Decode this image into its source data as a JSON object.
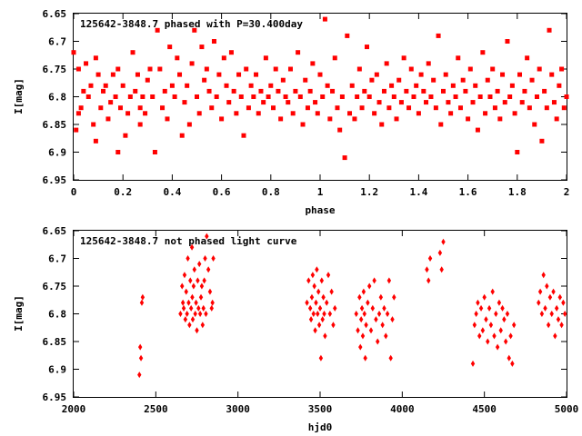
{
  "chart_data": [
    {
      "type": "scatter",
      "title": "125642-3848.7 phased with P=30.400day",
      "xlabel": "phase",
      "ylabel": "I[mag]",
      "xlim": [
        0,
        2
      ],
      "ylim": [
        6.95,
        6.65
      ],
      "y_inverted": true,
      "xticks": [
        "0",
        "0.2",
        "0.4",
        "0.6",
        "0.8",
        "1",
        "1.2",
        "1.4",
        "1.6",
        "1.8",
        "2"
      ],
      "yticks": [
        "6.65",
        "6.7",
        "6.75",
        "6.8",
        "6.85",
        "6.9",
        "6.95"
      ],
      "marker": "filled-square",
      "color": "#ff0000",
      "points": [
        [
          0.0,
          6.72
        ],
        [
          0.01,
          6.86
        ],
        [
          0.02,
          6.75
        ],
        [
          0.02,
          6.83
        ],
        [
          0.03,
          6.82
        ],
        [
          0.04,
          6.79
        ],
        [
          0.05,
          6.74
        ],
        [
          0.06,
          6.8
        ],
        [
          0.07,
          6.78
        ],
        [
          0.08,
          6.85
        ],
        [
          0.09,
          6.88
        ],
        [
          0.09,
          6.73
        ],
        [
          0.1,
          6.76
        ],
        [
          0.11,
          6.82
        ],
        [
          0.12,
          6.79
        ],
        [
          0.13,
          6.78
        ],
        [
          0.14,
          6.84
        ],
        [
          0.15,
          6.81
        ],
        [
          0.16,
          6.76
        ],
        [
          0.17,
          6.8
        ],
        [
          0.18,
          6.75
        ],
        [
          0.18,
          6.9
        ],
        [
          0.19,
          6.82
        ],
        [
          0.2,
          6.78
        ],
        [
          0.21,
          6.87
        ],
        [
          0.22,
          6.83
        ],
        [
          0.23,
          6.8
        ],
        [
          0.24,
          6.72
        ],
        [
          0.25,
          6.79
        ],
        [
          0.26,
          6.76
        ],
        [
          0.27,
          6.82
        ],
        [
          0.27,
          6.85
        ],
        [
          0.28,
          6.8
        ],
        [
          0.29,
          6.83
        ],
        [
          0.3,
          6.77
        ],
        [
          0.31,
          6.75
        ],
        [
          0.32,
          6.8
        ],
        [
          0.33,
          6.9
        ],
        [
          0.34,
          6.68
        ],
        [
          0.35,
          6.75
        ],
        [
          0.36,
          6.82
        ],
        [
          0.37,
          6.79
        ],
        [
          0.38,
          6.84
        ],
        [
          0.39,
          6.71
        ],
        [
          0.4,
          6.78
        ],
        [
          0.41,
          6.8
        ],
        [
          0.42,
          6.73
        ],
        [
          0.43,
          6.76
        ],
        [
          0.44,
          6.87
        ],
        [
          0.45,
          6.81
        ],
        [
          0.46,
          6.78
        ],
        [
          0.47,
          6.85
        ],
        [
          0.48,
          6.74
        ],
        [
          0.49,
          6.68
        ],
        [
          0.5,
          6.8
        ],
        [
          0.51,
          6.83
        ],
        [
          0.52,
          6.71
        ],
        [
          0.53,
          6.77
        ],
        [
          0.54,
          6.75
        ],
        [
          0.55,
          6.79
        ],
        [
          0.56,
          6.82
        ],
        [
          0.57,
          6.7
        ],
        [
          0.58,
          6.8
        ],
        [
          0.59,
          6.76
        ],
        [
          0.6,
          6.84
        ],
        [
          0.61,
          6.73
        ],
        [
          0.62,
          6.78
        ],
        [
          0.63,
          6.81
        ],
        [
          0.64,
          6.72
        ],
        [
          0.65,
          6.79
        ],
        [
          0.66,
          6.83
        ],
        [
          0.67,
          6.76
        ],
        [
          0.68,
          6.8
        ],
        [
          0.69,
          6.87
        ],
        [
          0.7,
          6.75
        ],
        [
          0.71,
          6.82
        ],
        [
          0.72,
          6.78
        ],
        [
          0.73,
          6.8
        ],
        [
          0.74,
          6.76
        ],
        [
          0.75,
          6.83
        ],
        [
          0.76,
          6.79
        ],
        [
          0.77,
          6.81
        ],
        [
          0.78,
          6.73
        ],
        [
          0.79,
          6.8
        ],
        [
          0.8,
          6.78
        ],
        [
          0.81,
          6.82
        ],
        [
          0.82,
          6.75
        ],
        [
          0.83,
          6.79
        ],
        [
          0.84,
          6.84
        ],
        [
          0.85,
          6.77
        ],
        [
          0.86,
          6.8
        ],
        [
          0.87,
          6.81
        ],
        [
          0.88,
          6.75
        ],
        [
          0.89,
          6.83
        ],
        [
          0.9,
          6.79
        ],
        [
          0.91,
          6.72
        ],
        [
          0.92,
          6.8
        ],
        [
          0.93,
          6.85
        ],
        [
          0.94,
          6.77
        ],
        [
          0.95,
          6.82
        ],
        [
          0.96,
          6.79
        ],
        [
          0.97,
          6.74
        ],
        [
          0.98,
          6.81
        ],
        [
          0.99,
          6.83
        ],
        [
          1.0,
          6.76
        ],
        [
          1.01,
          6.8
        ],
        [
          1.02,
          6.66
        ],
        [
          1.03,
          6.78
        ],
        [
          1.04,
          6.84
        ],
        [
          1.05,
          6.79
        ],
        [
          1.06,
          6.73
        ],
        [
          1.07,
          6.82
        ],
        [
          1.08,
          6.86
        ],
        [
          1.09,
          6.8
        ],
        [
          1.1,
          6.91
        ],
        [
          1.11,
          6.69
        ],
        [
          1.12,
          6.83
        ],
        [
          1.13,
          6.78
        ],
        [
          1.14,
          6.84
        ],
        [
          1.15,
          6.8
        ],
        [
          1.16,
          6.75
        ],
        [
          1.17,
          6.82
        ],
        [
          1.18,
          6.79
        ],
        [
          1.19,
          6.71
        ],
        [
          1.2,
          6.8
        ],
        [
          1.21,
          6.77
        ],
        [
          1.22,
          6.83
        ],
        [
          1.23,
          6.76
        ],
        [
          1.24,
          6.81
        ],
        [
          1.25,
          6.85
        ],
        [
          1.26,
          6.79
        ],
        [
          1.27,
          6.74
        ],
        [
          1.28,
          6.82
        ],
        [
          1.29,
          6.78
        ],
        [
          1.3,
          6.8
        ],
        [
          1.31,
          6.84
        ],
        [
          1.32,
          6.77
        ],
        [
          1.33,
          6.81
        ],
        [
          1.34,
          6.73
        ],
        [
          1.35,
          6.79
        ],
        [
          1.36,
          6.82
        ],
        [
          1.37,
          6.75
        ],
        [
          1.38,
          6.8
        ],
        [
          1.39,
          6.78
        ],
        [
          1.4,
          6.83
        ],
        [
          1.41,
          6.76
        ],
        [
          1.42,
          6.79
        ],
        [
          1.43,
          6.81
        ],
        [
          1.44,
          6.74
        ],
        [
          1.45,
          6.8
        ],
        [
          1.46,
          6.77
        ],
        [
          1.47,
          6.82
        ],
        [
          1.48,
          6.69
        ],
        [
          1.49,
          6.85
        ],
        [
          1.5,
          6.79
        ],
        [
          1.51,
          6.76
        ],
        [
          1.52,
          6.81
        ],
        [
          1.53,
          6.83
        ],
        [
          1.54,
          6.78
        ],
        [
          1.55,
          6.8
        ],
        [
          1.56,
          6.73
        ],
        [
          1.57,
          6.82
        ],
        [
          1.58,
          6.77
        ],
        [
          1.59,
          6.79
        ],
        [
          1.6,
          6.84
        ],
        [
          1.61,
          6.75
        ],
        [
          1.62,
          6.81
        ],
        [
          1.63,
          6.78
        ],
        [
          1.64,
          6.86
        ],
        [
          1.65,
          6.8
        ],
        [
          1.66,
          6.72
        ],
        [
          1.67,
          6.83
        ],
        [
          1.68,
          6.77
        ],
        [
          1.69,
          6.8
        ],
        [
          1.7,
          6.75
        ],
        [
          1.71,
          6.82
        ],
        [
          1.72,
          6.79
        ],
        [
          1.73,
          6.84
        ],
        [
          1.74,
          6.76
        ],
        [
          1.75,
          6.81
        ],
        [
          1.76,
          6.7
        ],
        [
          1.77,
          6.8
        ],
        [
          1.78,
          6.78
        ],
        [
          1.79,
          6.83
        ],
        [
          1.8,
          6.9
        ],
        [
          1.81,
          6.76
        ],
        [
          1.82,
          6.81
        ],
        [
          1.83,
          6.79
        ],
        [
          1.84,
          6.73
        ],
        [
          1.85,
          6.82
        ],
        [
          1.86,
          6.77
        ],
        [
          1.87,
          6.85
        ],
        [
          1.88,
          6.8
        ],
        [
          1.89,
          6.75
        ],
        [
          1.9,
          6.88
        ],
        [
          1.91,
          6.79
        ],
        [
          1.92,
          6.82
        ],
        [
          1.93,
          6.68
        ],
        [
          1.94,
          6.76
        ],
        [
          1.95,
          6.81
        ],
        [
          1.96,
          6.84
        ],
        [
          1.97,
          6.78
        ],
        [
          1.98,
          6.75
        ],
        [
          1.99,
          6.82
        ],
        [
          2.0,
          6.8
        ]
      ]
    },
    {
      "type": "scatter",
      "title": "125642-3848.7 not phased light curve",
      "xlabel": "hjd0",
      "ylabel": "I[mag]",
      "xlim": [
        2000,
        5000
      ],
      "ylim": [
        6.95,
        6.65
      ],
      "y_inverted": true,
      "xticks": [
        "2000",
        "2500",
        "3000",
        "3500",
        "4000",
        "4500",
        "5000"
      ],
      "yticks": [
        "6.65",
        "6.7",
        "6.75",
        "6.8",
        "6.85",
        "6.9",
        "6.95"
      ],
      "marker": "filled-diamond",
      "color": "#ff0000",
      "points": [
        [
          2400,
          6.91
        ],
        [
          2405,
          6.86
        ],
        [
          2410,
          6.88
        ],
        [
          2415,
          6.78
        ],
        [
          2420,
          6.77
        ],
        [
          2650,
          6.8
        ],
        [
          2660,
          6.75
        ],
        [
          2665,
          6.78
        ],
        [
          2670,
          6.79
        ],
        [
          2675,
          6.73
        ],
        [
          2680,
          6.81
        ],
        [
          2685,
          6.76
        ],
        [
          2690,
          6.8
        ],
        [
          2695,
          6.7
        ],
        [
          2700,
          6.78
        ],
        [
          2705,
          6.82
        ],
        [
          2710,
          6.74
        ],
        [
          2715,
          6.79
        ],
        [
          2720,
          6.68
        ],
        [
          2722,
          6.77
        ],
        [
          2725,
          6.81
        ],
        [
          2730,
          6.75
        ],
        [
          2735,
          6.72
        ],
        [
          2740,
          6.8
        ],
        [
          2745,
          6.78
        ],
        [
          2750,
          6.83
        ],
        [
          2755,
          6.74
        ],
        [
          2760,
          6.79
        ],
        [
          2765,
          6.71
        ],
        [
          2770,
          6.8
        ],
        [
          2775,
          6.77
        ],
        [
          2780,
          6.75
        ],
        [
          2785,
          6.82
        ],
        [
          2790,
          6.79
        ],
        [
          2795,
          6.74
        ],
        [
          2800,
          6.7
        ],
        [
          2805,
          6.8
        ],
        [
          2810,
          6.66
        ],
        [
          2820,
          6.72
        ],
        [
          2830,
          6.76
        ],
        [
          2840,
          6.79
        ],
        [
          2845,
          6.78
        ],
        [
          2850,
          6.7
        ],
        [
          3420,
          6.78
        ],
        [
          3430,
          6.74
        ],
        [
          3440,
          6.79
        ],
        [
          3445,
          6.81
        ],
        [
          3450,
          6.77
        ],
        [
          3455,
          6.73
        ],
        [
          3460,
          6.8
        ],
        [
          3465,
          6.75
        ],
        [
          3470,
          6.83
        ],
        [
          3475,
          6.78
        ],
        [
          3480,
          6.72
        ],
        [
          3485,
          6.8
        ],
        [
          3490,
          6.76
        ],
        [
          3495,
          6.82
        ],
        [
          3500,
          6.79
        ],
        [
          3505,
          6.88
        ],
        [
          3510,
          6.74
        ],
        [
          3515,
          6.81
        ],
        [
          3520,
          6.77
        ],
        [
          3525,
          6.8
        ],
        [
          3530,
          6.84
        ],
        [
          3540,
          6.78
        ],
        [
          3550,
          6.73
        ],
        [
          3560,
          6.8
        ],
        [
          3570,
          6.76
        ],
        [
          3580,
          6.82
        ],
        [
          3590,
          6.79
        ],
        [
          3720,
          6.8
        ],
        [
          3730,
          6.83
        ],
        [
          3740,
          6.77
        ],
        [
          3745,
          6.86
        ],
        [
          3750,
          6.81
        ],
        [
          3755,
          6.79
        ],
        [
          3760,
          6.84
        ],
        [
          3765,
          6.76
        ],
        [
          3770,
          6.8
        ],
        [
          3775,
          6.88
        ],
        [
          3780,
          6.82
        ],
        [
          3790,
          6.78
        ],
        [
          3800,
          6.75
        ],
        [
          3810,
          6.83
        ],
        [
          3820,
          6.79
        ],
        [
          3830,
          6.74
        ],
        [
          3840,
          6.81
        ],
        [
          3850,
          6.85
        ],
        [
          3860,
          6.8
        ],
        [
          3870,
          6.77
        ],
        [
          3880,
          6.82
        ],
        [
          3890,
          6.79
        ],
        [
          3900,
          6.84
        ],
        [
          3910,
          6.8
        ],
        [
          3920,
          6.74
        ],
        [
          3930,
          6.88
        ],
        [
          3940,
          6.81
        ],
        [
          3950,
          6.77
        ],
        [
          4150,
          6.72
        ],
        [
          4160,
          6.74
        ],
        [
          4170,
          6.7
        ],
        [
          4230,
          6.69
        ],
        [
          4240,
          6.72
        ],
        [
          4250,
          6.67
        ],
        [
          4430,
          6.89
        ],
        [
          4440,
          6.82
        ],
        [
          4450,
          6.8
        ],
        [
          4460,
          6.78
        ],
        [
          4470,
          6.84
        ],
        [
          4480,
          6.79
        ],
        [
          4490,
          6.83
        ],
        [
          4500,
          6.77
        ],
        [
          4510,
          6.81
        ],
        [
          4520,
          6.85
        ],
        [
          4530,
          6.79
        ],
        [
          4540,
          6.82
        ],
        [
          4550,
          6.76
        ],
        [
          4560,
          6.84
        ],
        [
          4570,
          6.8
        ],
        [
          4580,
          6.86
        ],
        [
          4590,
          6.78
        ],
        [
          4600,
          6.83
        ],
        [
          4610,
          6.79
        ],
        [
          4620,
          6.81
        ],
        [
          4630,
          6.85
        ],
        [
          4640,
          6.8
        ],
        [
          4650,
          6.88
        ],
        [
          4660,
          6.84
        ],
        [
          4670,
          6.89
        ],
        [
          4680,
          6.82
        ],
        [
          4830,
          6.78
        ],
        [
          4840,
          6.76
        ],
        [
          4850,
          6.8
        ],
        [
          4860,
          6.73
        ],
        [
          4870,
          6.79
        ],
        [
          4880,
          6.75
        ],
        [
          4890,
          6.82
        ],
        [
          4900,
          6.77
        ],
        [
          4910,
          6.8
        ],
        [
          4920,
          6.76
        ],
        [
          4930,
          6.84
        ],
        [
          4940,
          6.79
        ],
        [
          4950,
          6.81
        ],
        [
          4960,
          6.77
        ],
        [
          4970,
          6.82
        ],
        [
          4980,
          6.78
        ],
        [
          4990,
          6.8
        ]
      ]
    }
  ]
}
